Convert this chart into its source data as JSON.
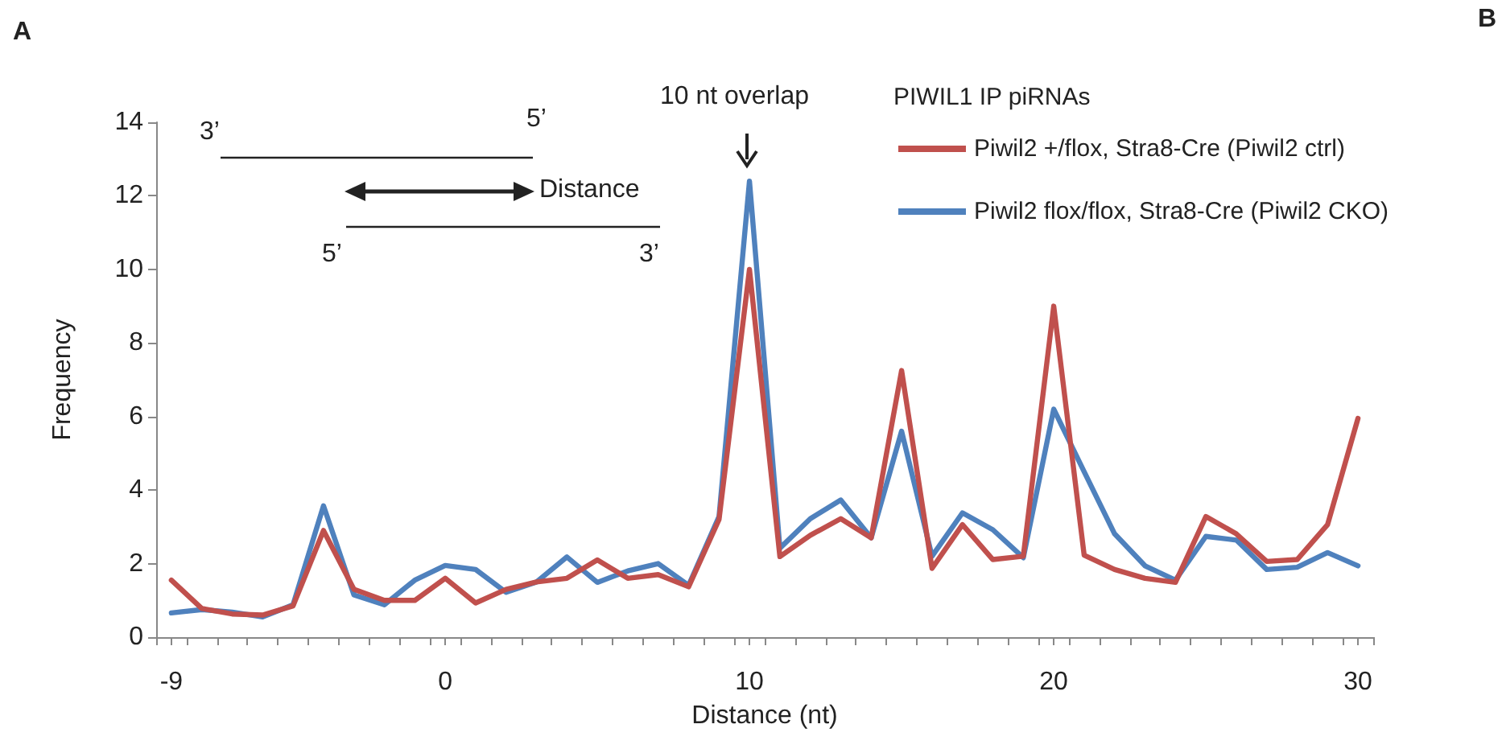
{
  "chart_data": {
    "type": "line",
    "xlabel": "Distance (nt)",
    "ylabel": "Frequency",
    "legend_title": "PIWIL1 IP piRNAs",
    "x": [
      -9,
      -8,
      -7,
      -6,
      -5,
      -4,
      -3,
      -2,
      -1,
      0,
      1,
      2,
      3,
      4,
      5,
      6,
      7,
      8,
      9,
      10,
      11,
      12,
      13,
      14,
      15,
      16,
      17,
      18,
      19,
      20,
      21,
      22,
      23,
      24,
      25,
      26,
      27,
      28,
      29,
      30
    ],
    "series": [
      {
        "name": "Piwil2 +/flox, Stra8-Cre (Piwil2 ctrl)",
        "color": "#c0504d",
        "values": [
          1.55,
          0.78,
          0.63,
          0.6,
          0.85,
          2.9,
          1.3,
          1.0,
          1.0,
          1.6,
          0.93,
          1.3,
          1.5,
          1.6,
          2.1,
          1.6,
          1.7,
          1.37,
          3.2,
          10.0,
          2.19,
          2.77,
          3.22,
          2.7,
          7.25,
          1.87,
          3.06,
          2.11,
          2.2,
          9.0,
          2.23,
          1.84,
          1.6,
          1.49,
          3.28,
          2.81,
          2.06,
          2.11,
          3.06,
          5.95
        ]
      },
      {
        "name": "Piwil2 flox/flox, Stra8-Cre (Piwil2 CKO)",
        "color": "#4f81bd",
        "values": [
          0.66,
          0.75,
          0.68,
          0.55,
          0.88,
          3.57,
          1.15,
          0.88,
          1.55,
          1.95,
          1.84,
          1.22,
          1.5,
          2.18,
          1.49,
          1.8,
          2.0,
          1.41,
          3.28,
          12.4,
          2.42,
          3.22,
          3.73,
          2.7,
          5.6,
          2.2,
          3.38,
          2.92,
          2.16,
          6.2,
          4.5,
          2.81,
          1.94,
          1.55,
          2.74,
          2.64,
          1.84,
          1.9,
          2.3,
          1.94
        ]
      }
    ],
    "xlim": [
      -9.5,
      30.5
    ],
    "xticks": [
      {
        "value": -9.5,
        "label": null
      },
      {
        "value": -9,
        "label": "-9"
      },
      {
        "value": -8.5,
        "label": null
      },
      {
        "value": -7.5,
        "label": null
      },
      {
        "value": -6.5,
        "label": null
      },
      {
        "value": -5.5,
        "label": null
      },
      {
        "value": -4.5,
        "label": null
      },
      {
        "value": -3.5,
        "label": null
      },
      {
        "value": -2.5,
        "label": null
      },
      {
        "value": -1.5,
        "label": null
      },
      {
        "value": -0.5,
        "label": null
      },
      {
        "value": 0,
        "label": "0"
      },
      {
        "value": 0.5,
        "label": null
      },
      {
        "value": 1.5,
        "label": null
      },
      {
        "value": 2.5,
        "label": null
      },
      {
        "value": 3.5,
        "label": null
      },
      {
        "value": 4.5,
        "label": null
      },
      {
        "value": 5.5,
        "label": null
      },
      {
        "value": 6.5,
        "label": null
      },
      {
        "value": 7.5,
        "label": null
      },
      {
        "value": 8.5,
        "label": null
      },
      {
        "value": 9.5,
        "label": null
      },
      {
        "value": 10,
        "label": "10"
      },
      {
        "value": 10.5,
        "label": null
      },
      {
        "value": 11.5,
        "label": null
      },
      {
        "value": 12.5,
        "label": null
      },
      {
        "value": 13.5,
        "label": null
      },
      {
        "value": 14.5,
        "label": null
      },
      {
        "value": 15.5,
        "label": null
      },
      {
        "value": 16.5,
        "label": null
      },
      {
        "value": 17.5,
        "label": null
      },
      {
        "value": 18.5,
        "label": null
      },
      {
        "value": 19.5,
        "label": null
      },
      {
        "value": 20,
        "label": "20"
      },
      {
        "value": 20.5,
        "label": null
      },
      {
        "value": 21.5,
        "label": null
      },
      {
        "value": 22.5,
        "label": null
      },
      {
        "value": 23.5,
        "label": null
      },
      {
        "value": 24.5,
        "label": null
      },
      {
        "value": 25.5,
        "label": null
      },
      {
        "value": 26.5,
        "label": null
      },
      {
        "value": 27.5,
        "label": null
      },
      {
        "value": 28.5,
        "label": null
      },
      {
        "value": 29.5,
        "label": null
      },
      {
        "value": 30,
        "label": "30"
      },
      {
        "value": 30.5,
        "label": null
      }
    ],
    "ylim": [
      0,
      14
    ],
    "yticks": [
      0,
      2,
      4,
      6,
      8,
      10,
      12,
      14
    ],
    "grid": false,
    "legend": "top right",
    "marker": "none",
    "line_style": "solid",
    "annotations": [
      "A",
      "B",
      "10 nt overlap",
      "3’",
      "5’",
      "Distance",
      "5’",
      "3’"
    ]
  }
}
